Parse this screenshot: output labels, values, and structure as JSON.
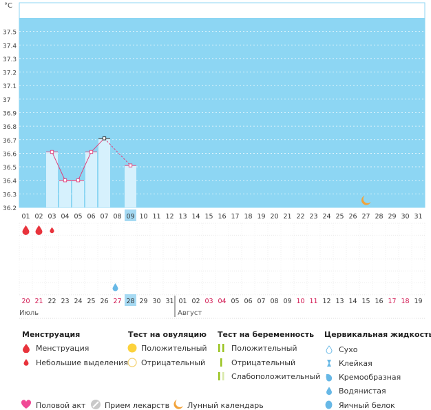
{
  "chart_data": {
    "type": "bar",
    "y_unit": "°C",
    "ylim": [
      36.2,
      37.6
    ],
    "y_ticks": [
      "37.5",
      "37.4",
      "37.3",
      "37.2",
      "37.1",
      "37",
      "36.9",
      "36.8",
      "36.7",
      "36.6",
      "36.5",
      "36.4",
      "36.3",
      "36.2"
    ],
    "days": [
      "01",
      "02",
      "03",
      "04",
      "05",
      "06",
      "07",
      "08",
      "09",
      "10",
      "11",
      "12",
      "13",
      "14",
      "15",
      "16",
      "17",
      "18",
      "19",
      "20",
      "21",
      "22",
      "23",
      "24",
      "25",
      "26",
      "27",
      "28",
      "29",
      "30",
      "31"
    ],
    "highlight_day": "09",
    "temperatures": [
      {
        "day": 3,
        "value": 36.61
      },
      {
        "day": 4,
        "value": 36.4
      },
      {
        "day": 5,
        "value": 36.4
      },
      {
        "day": 6,
        "value": 36.61
      },
      {
        "day": 7,
        "value": 36.71
      },
      {
        "day": 9,
        "value": 36.51
      }
    ],
    "menstruation": [
      {
        "day": 1,
        "type": "big"
      },
      {
        "day": 2,
        "type": "big"
      },
      {
        "day": 3,
        "type": "small"
      }
    ],
    "cervical_marks": [
      {
        "day": 8,
        "type": "watery"
      }
    ],
    "moon_marks": [
      {
        "day": 27
      }
    ],
    "calendar": [
      {
        "label": "20",
        "weekend": true
      },
      {
        "label": "21",
        "weekend": true
      },
      {
        "label": "22",
        "weekend": false
      },
      {
        "label": "23",
        "weekend": false
      },
      {
        "label": "24",
        "weekend": false
      },
      {
        "label": "25",
        "weekend": false
      },
      {
        "label": "26",
        "weekend": false
      },
      {
        "label": "27",
        "weekend": true
      },
      {
        "label": "28",
        "weekend": false,
        "highlight": true
      },
      {
        "label": "29",
        "weekend": false
      },
      {
        "label": "30",
        "weekend": false
      },
      {
        "label": "31",
        "weekend": false
      },
      {
        "label": "01",
        "weekend": false
      },
      {
        "label": "02",
        "weekend": false
      },
      {
        "label": "03",
        "weekend": true
      },
      {
        "label": "04",
        "weekend": true
      },
      {
        "label": "05",
        "weekend": false
      },
      {
        "label": "06",
        "weekend": false
      },
      {
        "label": "07",
        "weekend": false
      },
      {
        "label": "08",
        "weekend": false
      },
      {
        "label": "09",
        "weekend": false
      },
      {
        "label": "10",
        "weekend": true
      },
      {
        "label": "11",
        "weekend": true
      },
      {
        "label": "12",
        "weekend": false
      },
      {
        "label": "13",
        "weekend": false
      },
      {
        "label": "14",
        "weekend": false
      },
      {
        "label": "15",
        "weekend": false
      },
      {
        "label": "16",
        "weekend": false
      },
      {
        "label": "17",
        "weekend": true
      },
      {
        "label": "18",
        "weekend": true
      },
      {
        "label": "19",
        "weekend": false
      }
    ],
    "month_labels": [
      {
        "label": "Июль",
        "start_index": 0
      },
      {
        "label": "Август",
        "start_index": 12
      }
    ]
  },
  "colors": {
    "plot_bg": "#8dd6f3",
    "bar_fill": "#d6f1fd",
    "line": "#e0407a",
    "highlight_tick": "#a6daf3",
    "weekend": "#d0104c",
    "drop_red": "#e8333c",
    "drop_blue": "#67b8e6",
    "moon": "#f2a33a",
    "heart": "#f04a96",
    "test_yellow": "#fcd23c",
    "test_green": "#99c31f"
  },
  "legend": {
    "menstruation": {
      "title": "Менструация",
      "items": [
        "Менструация",
        "Небольшие выделения"
      ]
    },
    "ovulation": {
      "title": "Тест на овуляцию",
      "items": [
        "Положительный",
        "Отрицательный"
      ]
    },
    "pregnancy": {
      "title": "Тест на беременность",
      "items": [
        "Положительный",
        "Отрицательный",
        "Слабоположительный"
      ]
    },
    "cervical": {
      "title": "Цервикальная жидкость",
      "items": [
        "Сухо",
        "Клейкая",
        "Кремообразная",
        "Водянистая",
        "Яичный белок"
      ]
    },
    "other": [
      "Половой акт",
      "Прием лекарств",
      "Лунный календарь"
    ]
  }
}
